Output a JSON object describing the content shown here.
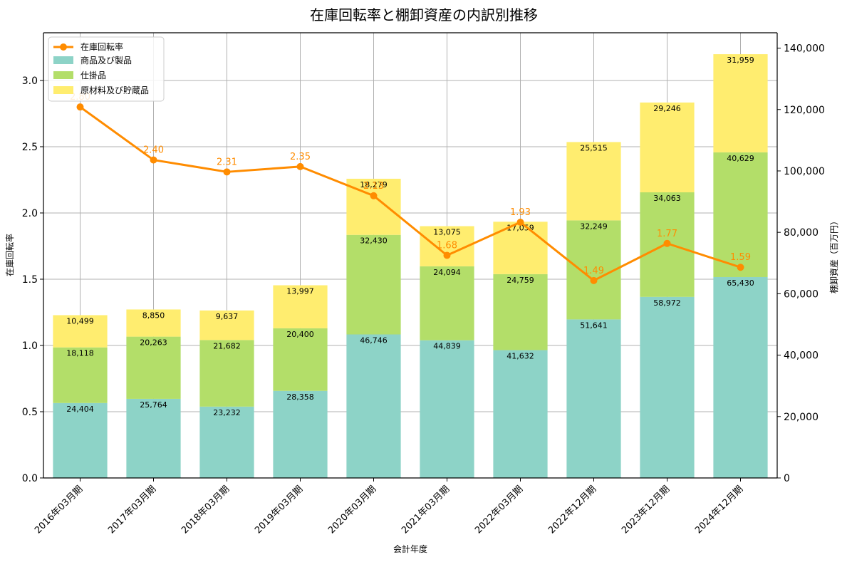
{
  "chart_data": {
    "type": "bar",
    "title": "在庫回転率と棚卸資産の内訳別推移",
    "xlabel": "会計年度",
    "ylabel_left": "在庫回転率",
    "ylabel_right": "棚卸資産（百万円）",
    "categories": [
      "2016年03月期",
      "2017年03月期",
      "2018年03月期",
      "2019年03月期",
      "2020年03月期",
      "2021年03月期",
      "2022年03月期",
      "2022年12月期",
      "2023年12月期",
      "2024年12月期"
    ],
    "y_left_range": [
      0,
      3.36
    ],
    "y_left_ticks": [
      "0.0",
      "0.5",
      "1.0",
      "1.5",
      "2.0",
      "2.5",
      "3.0"
    ],
    "y_right_range": [
      0,
      145000
    ],
    "y_right_ticks": [
      "0",
      "20,000",
      "40,000",
      "60,000",
      "80,000",
      "100,000",
      "120,000",
      "140,000"
    ],
    "grid": true,
    "legend_position": "top-left",
    "bar_series": [
      {
        "name": "商品及び製品",
        "color": "#8dd3c7",
        "values": [
          24404,
          25764,
          23232,
          28358,
          46746,
          44839,
          41632,
          51641,
          58972,
          65430
        ],
        "labels": [
          "24,404",
          "25,764",
          "23,232",
          "28,358",
          "46,746",
          "44,839",
          "41,632",
          "51,641",
          "58,972",
          "65,430"
        ]
      },
      {
        "name": "仕掛品",
        "color": "#b3de69",
        "values": [
          18118,
          20263,
          21682,
          20400,
          32430,
          24094,
          24759,
          32249,
          34063,
          40629
        ],
        "labels": [
          "18,118",
          "20,263",
          "21,682",
          "20,400",
          "32,430",
          "24,094",
          "24,759",
          "32,249",
          "34,063",
          "40,629"
        ]
      },
      {
        "name": "原材料及び貯蔵品",
        "color": "#ffed6f",
        "values": [
          10499,
          8850,
          9637,
          13997,
          18279,
          13075,
          17059,
          25515,
          29246,
          31959
        ],
        "labels": [
          "10,499",
          "8,850",
          "9,637",
          "13,997",
          "18,279",
          "13,075",
          "17,059",
          "25,515",
          "29,246",
          "31,959"
        ]
      }
    ],
    "line_series": {
      "name": "在庫回転率",
      "color": "#ff8c00",
      "values": [
        2.8,
        2.4,
        2.31,
        2.35,
        2.13,
        1.68,
        1.93,
        1.49,
        1.77,
        1.59
      ],
      "labels": [
        "2.80",
        "2.40",
        "2.31",
        "2.35",
        "2.13",
        "1.68",
        "1.93",
        "1.49",
        "1.77",
        "1.59"
      ]
    }
  }
}
